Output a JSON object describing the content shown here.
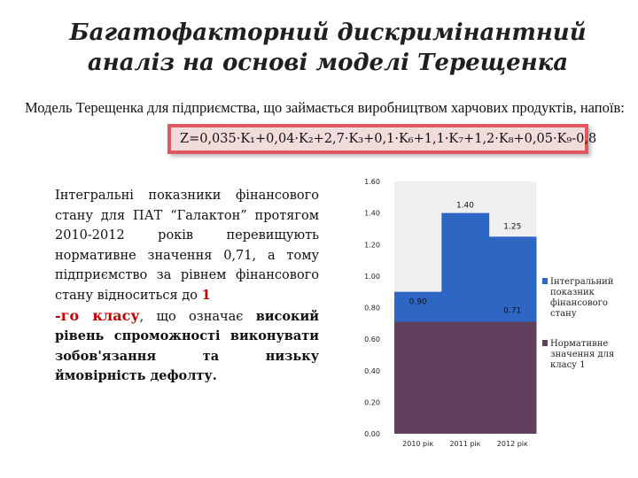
{
  "title_line1": "Багатофакторний дискримінантний",
  "title_line2": "аналіз на основі моделі Терещенка",
  "subtitle": "Модель Терещенка для підприємства, що займається виробництвом харчових продуктів, напоїв:",
  "formula": "Z=0,035·K₁+0,04·K₂+2,7·K₃+0,1·K₆+1,1·K₇+1,2·K₈+0,05·K₉-0,8",
  "body": {
    "p1": "Інтегральні показники фінансового стану для ПАТ “Галактон” протягом 2010-2012 років перевищують нормативне значення 0,71, а тому підприємство за рівнем фінансового стану відноситься до",
    "class_num": "1",
    "class_text": "-го класу",
    "p2": ", що означає",
    "p3": "високий рівень спроможності виконувати зобов'язання та низьку ймовірність дефолту."
  },
  "colors": {
    "integral": "#2e66c4",
    "normative": "#60405c",
    "plot_bg": "#efefef",
    "formula_bg": "#f2dcdb",
    "formula_border": "#e0585f"
  },
  "chart_data": {
    "type": "area",
    "categories": [
      "2010 рік",
      "2011 рік",
      "2012 рік"
    ],
    "series": [
      {
        "name": "Інтегральний показник фінансового стану",
        "values": [
          0.9,
          1.4,
          1.25
        ]
      },
      {
        "name": "Нормативне значення для класу 1",
        "values": [
          0.71,
          0.71,
          0.71
        ]
      }
    ],
    "data_labels": [
      "0.90",
      "1.40",
      "1.25",
      "0.71"
    ],
    "y_ticks": [
      "0.00",
      "0.20",
      "0.40",
      "0.60",
      "0.80",
      "1.00",
      "1.20",
      "1.40",
      "1.60"
    ],
    "ylim": [
      0,
      1.6
    ],
    "legend_position": "right",
    "legend": [
      {
        "lines": [
          "Інтегральний",
          "показник",
          "фінансового",
          "стану"
        ]
      },
      {
        "lines": [
          "Нормативне",
          "значення для",
          "класу 1"
        ]
      }
    ]
  }
}
